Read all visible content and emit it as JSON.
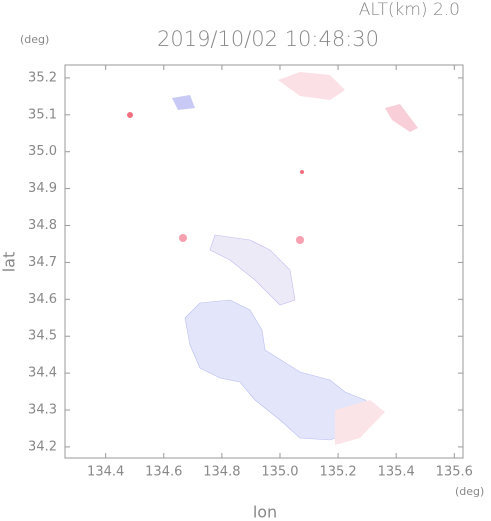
{
  "chart_data": {
    "type": "radar",
    "title": "2019/10/02 10:48:30",
    "subtitle": "ALT(km) 2.0",
    "x_label": "lon",
    "y_label": "lat",
    "x_unit": "(deg)",
    "y_unit": "(deg)",
    "xlim": [
      134.26,
      135.63
    ],
    "ylim": [
      34.17,
      35.235
    ],
    "xticks": [
      134.4,
      134.6,
      134.8,
      {
        "value": 135,
        "label": "135.0"
      },
      135.2,
      135.4,
      135.6
    ],
    "yticks": [
      34.2,
      34.3,
      34.4,
      34.5,
      34.6,
      34.7,
      34.8,
      34.9,
      {
        "value": 35,
        "label": "35.0"
      },
      35.1,
      35.2
    ]
  }
}
